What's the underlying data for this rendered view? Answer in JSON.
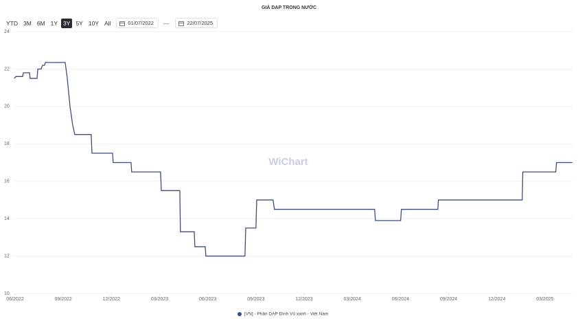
{
  "controls": {
    "range_buttons": [
      "YTD",
      "3M",
      "6M",
      "1Y",
      "3Y",
      "5Y",
      "10Y",
      "All"
    ],
    "active_range": "3Y",
    "start_date": "01/07/2022",
    "date_separator": "—",
    "end_date": "22/07/2025"
  },
  "chart_data": {
    "type": "line",
    "title": "GIÁ DAP TRONG NƯỚC",
    "watermark": "WiChart",
    "x": [
      2022.413,
      2022.421,
      2022.456,
      2022.46,
      2022.492,
      2022.495,
      2022.531,
      2022.535,
      2022.552,
      2022.559,
      2022.57,
      2022.574,
      2022.677,
      2022.688,
      2022.702,
      2022.716,
      2022.727,
      2022.812,
      2022.816,
      2022.923,
      2022.926,
      2023.019,
      2023.022,
      2023.172,
      2023.176,
      2023.272,
      2023.275,
      2023.347,
      2023.35,
      2023.404,
      2023.407,
      2023.61,
      2023.614,
      2023.667,
      2023.671,
      2023.756,
      2023.763,
      2024.283,
      2024.287,
      2024.418,
      2024.422,
      2024.611,
      2024.614,
      2025.049,
      2025.052,
      2025.223,
      2025.227,
      2025.309
    ],
    "series": [
      {
        "name": "[VN] - Phân DAP Đình Vũ xanh - Việt Nam",
        "color": "#3e4a8e",
        "values": [
          21.5,
          21.6,
          21.6,
          21.8,
          21.8,
          21.5,
          21.5,
          22.0,
          22.0,
          22.2,
          22.2,
          22.35,
          22.35,
          21.5,
          20.0,
          19.0,
          18.5,
          18.5,
          17.5,
          17.5,
          17.0,
          17.0,
          16.5,
          16.5,
          15.5,
          15.5,
          13.3,
          13.3,
          12.5,
          12.5,
          12.0,
          12.0,
          13.5,
          13.5,
          15.0,
          15.0,
          14.5,
          14.5,
          13.9,
          13.9,
          14.5,
          14.5,
          15.0,
          15.0,
          16.5,
          16.5,
          17.0,
          17.0
        ]
      }
    ],
    "xlim": [
      2022.41,
      2025.31
    ],
    "xticks": [
      {
        "value": 2022.417,
        "label": "06/2022"
      },
      {
        "value": 2022.667,
        "label": "09/2022"
      },
      {
        "value": 2022.917,
        "label": "12/2022"
      },
      {
        "value": 2023.167,
        "label": "03/2023"
      },
      {
        "value": 2023.417,
        "label": "06/2023"
      },
      {
        "value": 2023.667,
        "label": "09/2023"
      },
      {
        "value": 2023.917,
        "label": "12/2023"
      },
      {
        "value": 2024.167,
        "label": "03/2024"
      },
      {
        "value": 2024.417,
        "label": "06/2024"
      },
      {
        "value": 2024.667,
        "label": "09/2024"
      },
      {
        "value": 2024.917,
        "label": "12/2024"
      },
      {
        "value": 2025.167,
        "label": "03/2025"
      }
    ],
    "ylim": [
      10,
      24
    ],
    "yticks": [
      10,
      12,
      14,
      16,
      18,
      20,
      22,
      24
    ],
    "grid": true
  }
}
